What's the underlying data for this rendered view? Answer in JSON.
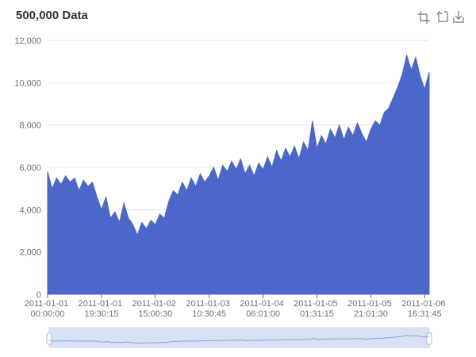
{
  "chart_data": {
    "type": "area",
    "title": "500,000 Data",
    "color": "#4b67c9",
    "categories": [
      "2011-01-01 00:00:00",
      null,
      null,
      null,
      null,
      null,
      null,
      null,
      null,
      null,
      null,
      null,
      "2011-01-01 19:30:15",
      null,
      null,
      null,
      null,
      null,
      null,
      null,
      null,
      null,
      null,
      null,
      "2011-01-02 15:00:30",
      null,
      null,
      null,
      null,
      null,
      null,
      null,
      null,
      null,
      null,
      null,
      "2011-01-03 10:30:45",
      null,
      null,
      null,
      null,
      null,
      null,
      null,
      null,
      null,
      null,
      null,
      "2011-01-04 06:01:00",
      null,
      null,
      null,
      null,
      null,
      null,
      null,
      null,
      null,
      null,
      null,
      "2011-01-05 01:31:15",
      null,
      null,
      null,
      null,
      null,
      null,
      null,
      null,
      null,
      null,
      null,
      "2011-01-05 21:01:30",
      null,
      null,
      null,
      null,
      null,
      null,
      null,
      null,
      null,
      null,
      null,
      "2011-01-06 16:31:45",
      null
    ],
    "values": [
      5800,
      5000,
      5500,
      5200,
      5600,
      5300,
      5500,
      4900,
      5400,
      5100,
      5300,
      4600,
      4000,
      4600,
      3600,
      3900,
      3400,
      4300,
      3600,
      3300,
      2800,
      3400,
      3100,
      3500,
      3300,
      3800,
      3600,
      4400,
      4900,
      4700,
      5300,
      4900,
      5500,
      5100,
      5700,
      5300,
      5600,
      6000,
      5400,
      6100,
      5800,
      6300,
      5900,
      6400,
      5700,
      6100,
      5600,
      6200,
      5900,
      6500,
      6000,
      6800,
      6300,
      6900,
      6500,
      7000,
      6400,
      7200,
      6800,
      8200,
      6900,
      7500,
      7100,
      7800,
      7400,
      8000,
      7300,
      7900,
      7500,
      8100,
      7600,
      7200,
      7800,
      8200,
      8000,
      8600,
      8800,
      9300,
      9800,
      10400,
      11300,
      10600,
      11200,
      10300,
      9700,
      10500
    ],
    "ylim": [
      0,
      12000
    ],
    "yticks": [
      0,
      {
        "value": 2000,
        "label": "2,000"
      },
      {
        "value": 4000,
        "label": "4,000"
      },
      {
        "value": 6000,
        "label": "6,000"
      },
      {
        "value": 8000,
        "label": "8,000"
      },
      {
        "value": 10000,
        "label": "10,000"
      },
      {
        "value": 12000,
        "label": "12,000"
      }
    ],
    "grid": true
  }
}
